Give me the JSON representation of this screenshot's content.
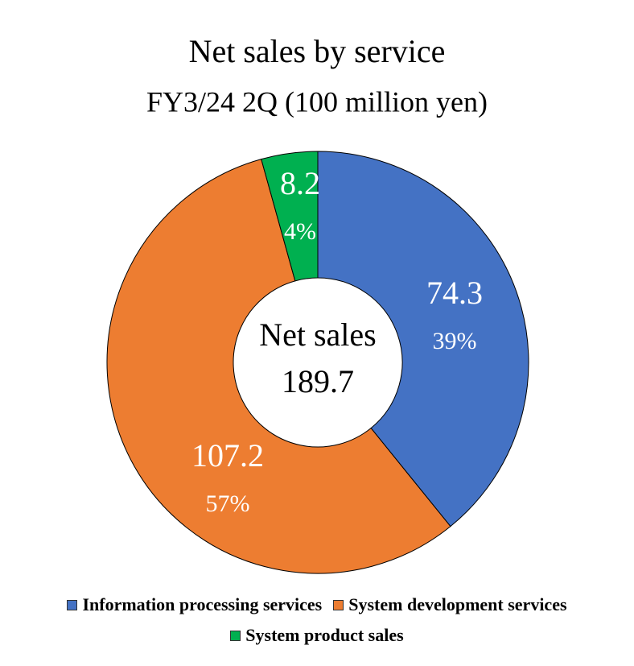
{
  "chart_data": {
    "type": "donut",
    "title": "Net sales by service",
    "subtitle": "FY3/24 2Q (100 million yen)",
    "categories": [
      "Information processing services",
      "System development services",
      "System product sales"
    ],
    "values": [
      74.3,
      107.2,
      8.2
    ],
    "percents": [
      39,
      57,
      4
    ],
    "percent_labels": [
      "39%",
      "57%",
      "4%"
    ],
    "colors": [
      "#4472c4",
      "#ed7d31",
      "#00b050"
    ],
    "center_label": "Net sales",
    "total": 189.7
  }
}
